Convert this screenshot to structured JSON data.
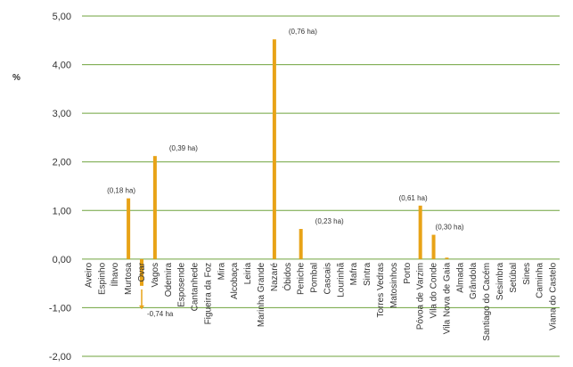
{
  "chart_data": {
    "type": "bar",
    "ylabel": "%",
    "ylim": [
      -2,
      5
    ],
    "yticks": [
      "-2,00",
      "-1,00",
      "0,00",
      "1,00",
      "2,00",
      "3,00",
      "4,00",
      "5,00"
    ],
    "grid": true,
    "bar_color": "#E8A317",
    "grid_color": "#6FA33D",
    "categories": [
      "Aveiro",
      "Espinho",
      "Ílhavo",
      "Murtosa",
      "Ovar",
      "Vagos",
      "Odemira",
      "Esposende",
      "Cantanhede",
      "Figueira da Foz",
      "Mira",
      "Alcobaça",
      "Leiria",
      "Marinha Grande",
      "Nazaré",
      "Óbidos",
      "Peniche",
      "Pombal",
      "Cascais",
      "Lourinhã",
      "Mafra",
      "Sintra",
      "Torres Vedras",
      "Matosinhos",
      "Porto",
      "Póvoa de Varzim",
      "Vila do Conde",
      "Vila Nova de Gaia",
      "Almada",
      "Grândola",
      "Santiago do Cacém",
      "Sesimbra",
      "Setúbal",
      "Sines",
      "Caminha",
      "Viana do Castelo"
    ],
    "values": [
      0,
      0,
      0,
      1.25,
      -0.55,
      2.12,
      0,
      0,
      0,
      0,
      0,
      0,
      0,
      0,
      4.52,
      0,
      0.62,
      0,
      0,
      0,
      0,
      0,
      0,
      0,
      0,
      1.1,
      0.5,
      0.03,
      0,
      0,
      0,
      0,
      0,
      0,
      0,
      0
    ],
    "annotations": [
      {
        "category": "Murtosa",
        "text": "(0,18 ha)"
      },
      {
        "category": "Ovar",
        "text": "-0,74 ha"
      },
      {
        "category": "Vagos",
        "text": "(0,39 ha)"
      },
      {
        "category": "Nazaré",
        "text": "(0,76 ha)"
      },
      {
        "category": "Peniche",
        "text": "(0,23 ha)"
      },
      {
        "category": "Póvoa de Varzim",
        "text": "(0,61 ha)"
      },
      {
        "category": "Vila do Conde",
        "text": "(0,30 ha)"
      }
    ]
  }
}
